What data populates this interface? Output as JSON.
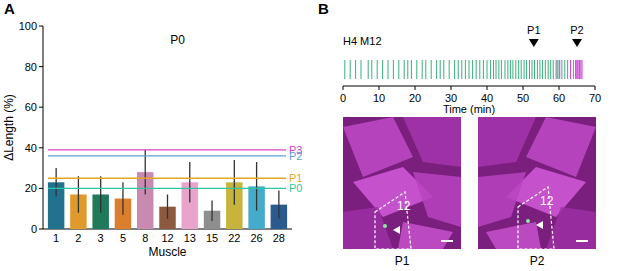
{
  "chart_data": [
    {
      "panel": "A",
      "type": "bar",
      "title": "P0",
      "x_label": "Muscle",
      "y_label": "ΔLength (%)",
      "categories": [
        "1",
        "2",
        "3",
        "5",
        "8",
        "12",
        "13",
        "15",
        "22",
        "26",
        "28"
      ],
      "values": [
        23,
        17,
        17,
        15,
        28,
        11,
        23,
        9,
        23,
        21,
        12
      ],
      "errors": [
        7,
        9,
        9,
        8,
        11,
        6,
        10,
        5,
        11,
        12,
        7
      ],
      "colors": [
        "#22728f",
        "#e09a2c",
        "#1f7a5c",
        "#db7f2e",
        "#c98ab2",
        "#8c5a3e",
        "#eaa3cc",
        "#8e8e8e",
        "#c7b43d",
        "#44abcb",
        "#2b5b8e"
      ],
      "reference_lines": [
        {
          "label": "P3",
          "value": 39,
          "color": "#d93fcf"
        },
        {
          "label": "P2",
          "value": 36,
          "color": "#5b9fd8"
        },
        {
          "label": "P1",
          "value": 25,
          "color": "#e8a321"
        },
        {
          "label": "P0",
          "value": 20,
          "color": "#2fc7a3"
        }
      ],
      "ylim": [
        0,
        100
      ],
      "yticks": [
        0,
        20,
        40,
        60,
        80,
        100
      ],
      "grid": false
    },
    {
      "panel": "B",
      "type": "raster",
      "title": "H4 M12",
      "x_label": "Time (min)",
      "xlim": [
        0,
        70
      ],
      "xticks": [
        0,
        10,
        20,
        30,
        40,
        50,
        60,
        70
      ],
      "tick_labels": "x",
      "series": [
        {
          "color": "#3cae7c",
          "x": [
            0.5,
            2,
            3.5,
            5,
            7,
            8,
            9.5,
            11,
            12.5,
            14,
            15.5,
            17,
            18,
            19,
            20.5,
            22,
            23,
            24.5,
            26,
            27,
            28,
            29.5,
            31,
            32,
            33,
            34,
            35,
            36,
            37,
            38,
            39,
            40,
            41,
            41.8,
            42.5,
            43.3,
            44,
            45,
            45.8,
            46.5,
            47.2,
            48,
            48.8,
            49.5,
            50.3,
            51,
            51.8,
            52.5,
            53.2,
            54,
            54.7,
            55.4,
            56.2,
            57,
            57.7,
            58.4,
            59.2,
            60,
            60.8,
            61.6,
            62.4,
            63.2,
            64,
            64.6,
            65.2,
            65.8
          ]
        },
        {
          "color": "#e040e0",
          "x": [
            59.5,
            60.2,
            63.2,
            64.8,
            65.3,
            65.7,
            66.1,
            66.4
          ]
        }
      ],
      "annotations": [
        {
          "x": 53,
          "label": "P1"
        },
        {
          "x": 65,
          "label": "P2"
        }
      ]
    }
  ],
  "images": [
    {
      "label": "P1",
      "region_label": "12"
    },
    {
      "label": "P2",
      "region_label": "12"
    }
  ]
}
